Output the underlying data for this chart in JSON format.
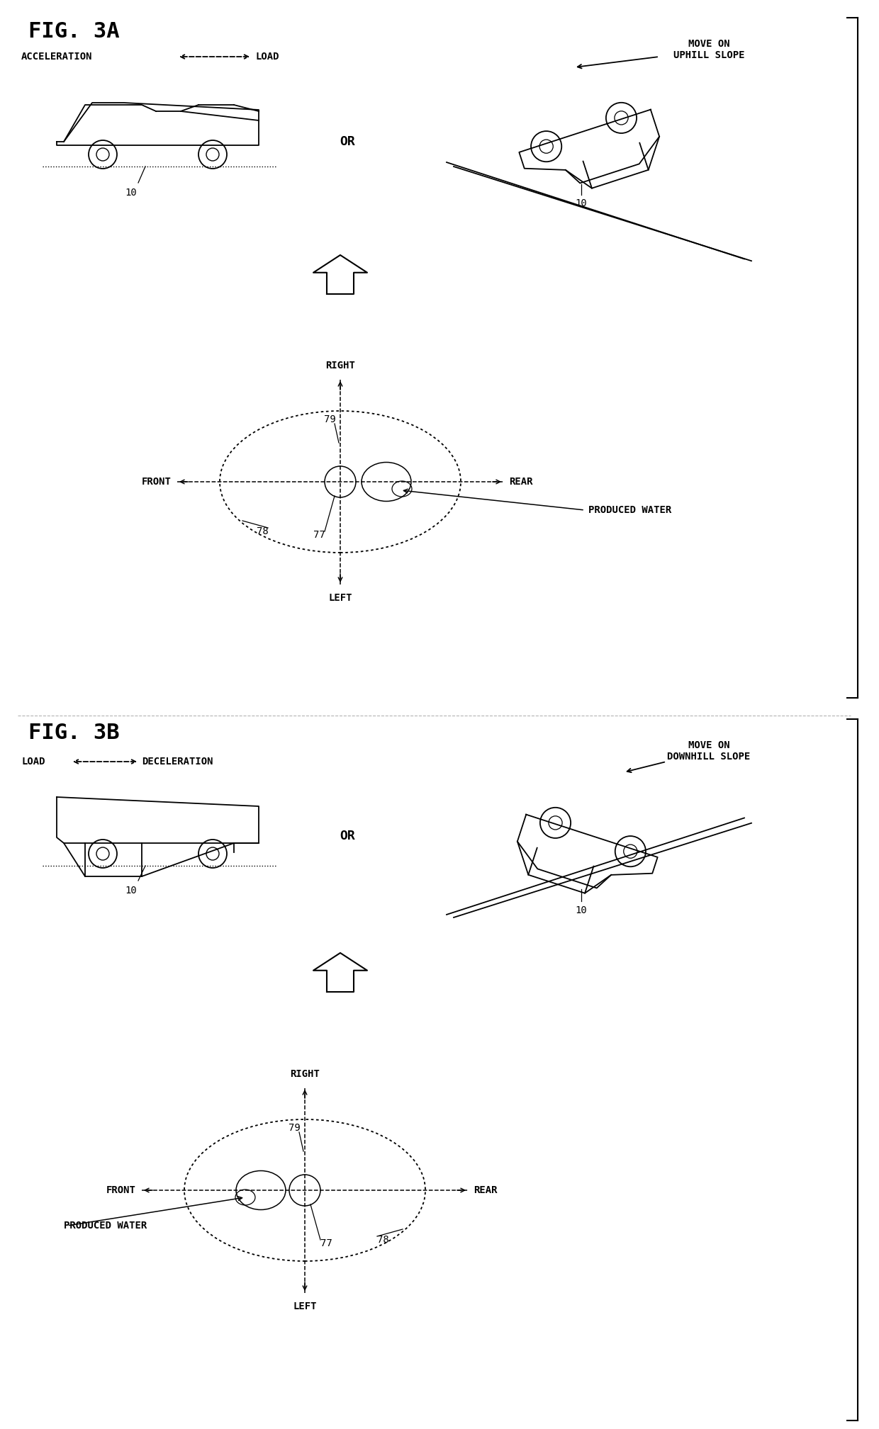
{
  "bg_color": "#ffffff",
  "fig_3a_label": "FIG. 3A",
  "fig_3b_label": "FIG. 3B",
  "acceleration_label": "ACCELERATION",
  "load_label": "LOAD",
  "deceleration_label": "DECELERATION",
  "move_uphill": "MOVE ON\nUPHILL SLOPE",
  "move_downhill": "MOVE ON\nDOWNHILL SLOPE",
  "or_label": "OR",
  "right_label": "RIGHT",
  "left_label": "LEFT",
  "front_label": "FRONT",
  "rear_label": "REAR",
  "produced_water_label": "PRODUCED WATER",
  "ref_10": "10",
  "ref_77": "77",
  "ref_78": "78",
  "ref_79": "79",
  "bracket_color": "#000000",
  "line_color": "#000000",
  "text_color": "#000000"
}
